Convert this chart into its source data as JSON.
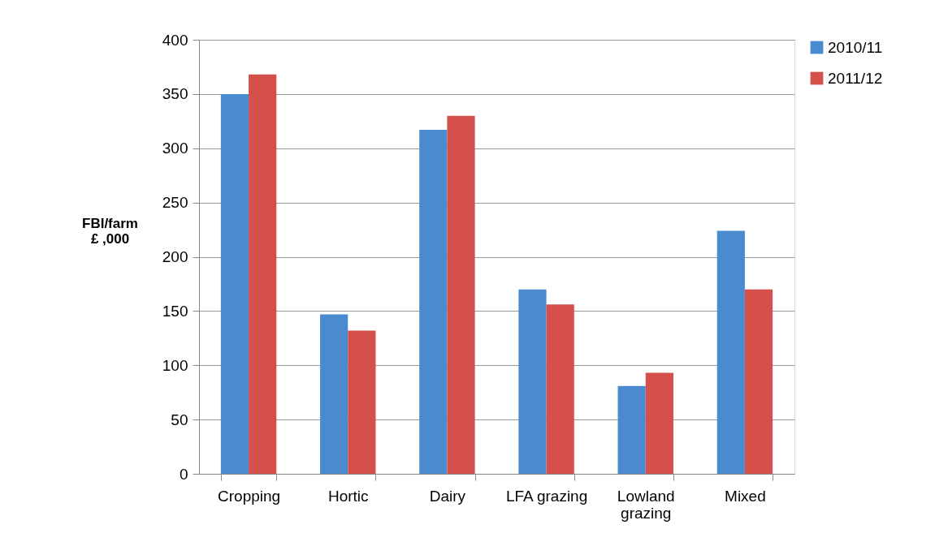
{
  "chart_data": {
    "type": "bar",
    "ylabel": "FBI/farm\n£ ,000",
    "categories": [
      "Cropping",
      "Hortic",
      "Dairy",
      "LFA grazing",
      "Lowland grazing",
      "Mixed"
    ],
    "series": [
      {
        "name": "2010/11",
        "color": "#4a8bd0",
        "values": [
          350,
          147,
          317,
          170,
          81,
          224
        ]
      },
      {
        "name": "2011/12",
        "color": "#d5504a",
        "values": [
          368,
          132,
          330,
          156,
          93,
          170
        ]
      }
    ],
    "ylim": [
      0,
      400
    ],
    "yticks": [
      0,
      50,
      100,
      150,
      200,
      250,
      300,
      350,
      400
    ],
    "grid": "y",
    "legend": "right"
  }
}
